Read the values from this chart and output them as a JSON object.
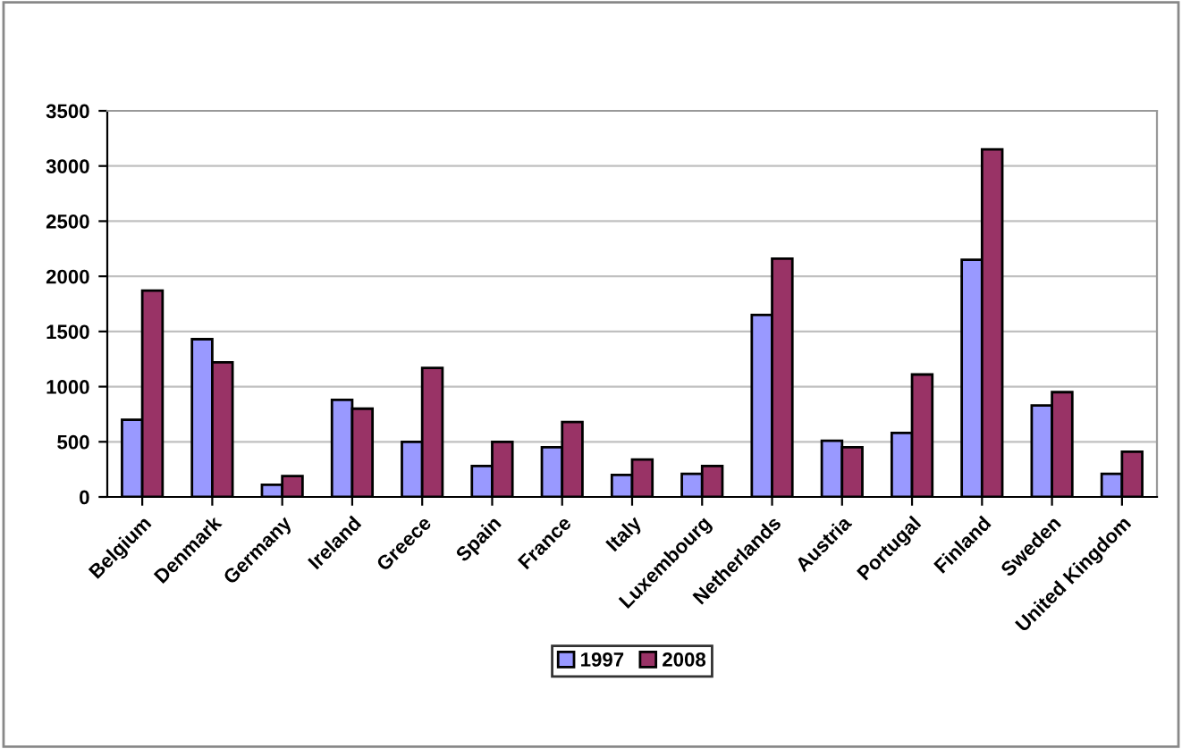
{
  "chart_data": {
    "type": "bar",
    "categories": [
      "Belgium",
      "Denmark",
      "Germany",
      "Ireland",
      "Greece",
      "Spain",
      "France",
      "Italy",
      "Luxembourg",
      "Netherlands",
      "Austria",
      "Portugal",
      "Finland",
      "Sweden",
      "United Kingdom"
    ],
    "series": [
      {
        "name": "1997",
        "color": "#9999ff",
        "values": [
          700,
          1430,
          110,
          880,
          500,
          280,
          450,
          200,
          210,
          1650,
          510,
          580,
          2150,
          830,
          210
        ]
      },
      {
        "name": "2008",
        "color": "#993366",
        "values": [
          1870,
          1220,
          190,
          800,
          1170,
          500,
          680,
          340,
          280,
          2160,
          450,
          1110,
          3150,
          950,
          410
        ]
      }
    ],
    "ylim": [
      0,
      3500
    ],
    "yticks": [
      0,
      500,
      1000,
      1500,
      2000,
      2500,
      3000,
      3500
    ],
    "grid": "y",
    "legend": "bottom"
  }
}
